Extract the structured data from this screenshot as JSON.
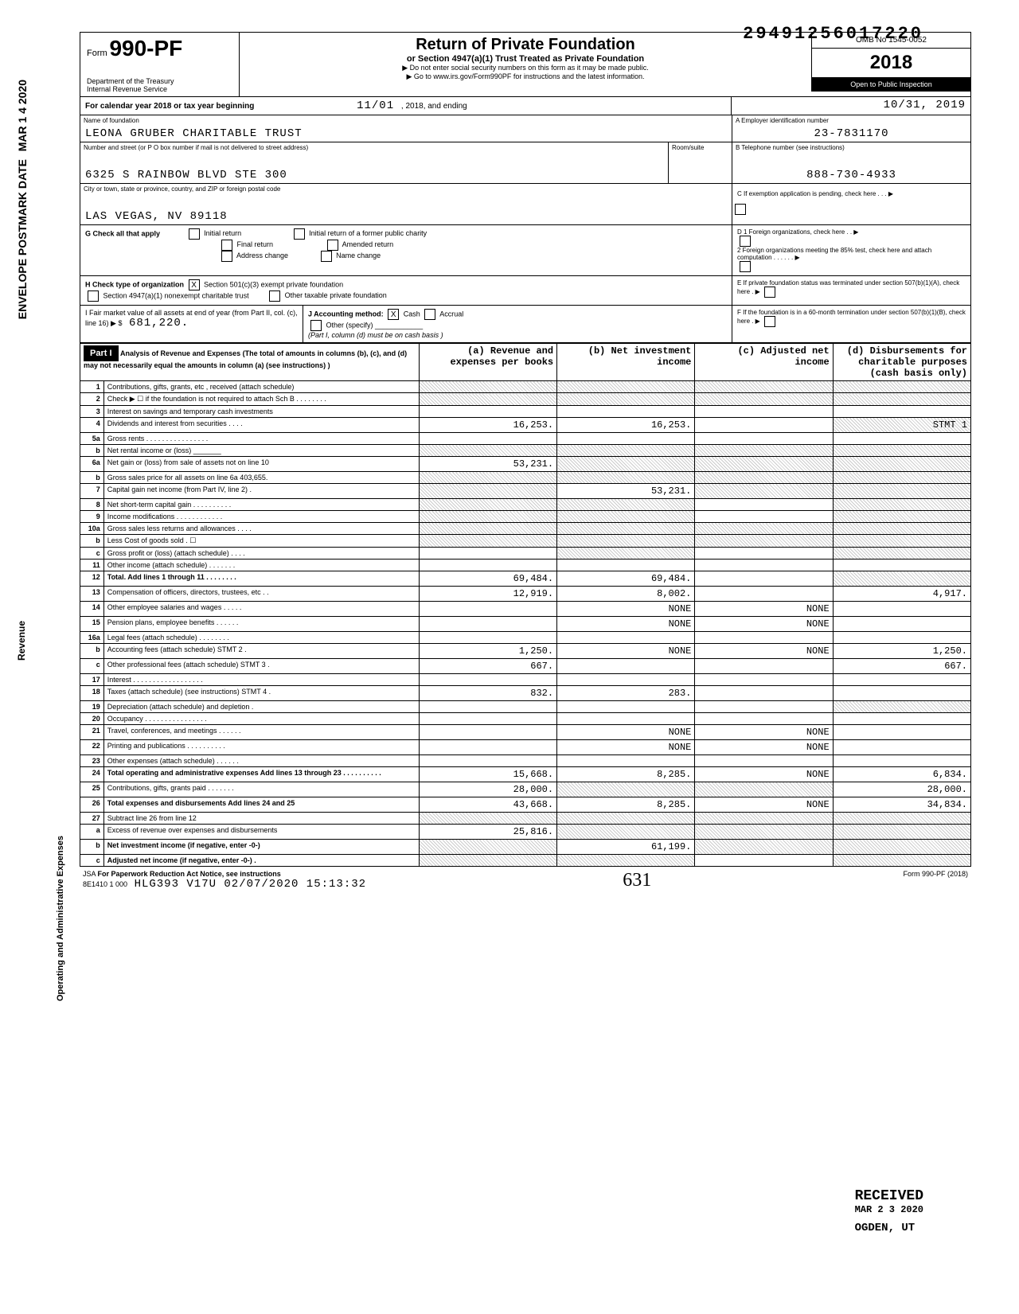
{
  "top_number": "29491256017220",
  "form": {
    "no_prefix": "Form",
    "no": "990-PF",
    "dept": "Department of the Treasury",
    "irs": "Internal Revenue Service",
    "title": "Return of Private Foundation",
    "subtitle": "or Section 4947(a)(1) Trust Treated as Private Foundation",
    "warn": "▶ Do not enter social security numbers on this form as it may be made public.",
    "goto": "▶ Go to www.irs.gov/Form990PF for instructions and the latest information.",
    "omb": "OMB No 1545-0052",
    "year": "2018",
    "open": "Open to Public Inspection"
  },
  "cal": {
    "label": "For calendar year 2018 or tax year beginning",
    "begin": "11/01",
    "mid": ", 2018, and ending",
    "end": "10/31, 2019"
  },
  "name": {
    "label": "Name of foundation",
    "value": "LEONA GRUBER CHARITABLE TRUST",
    "addr_label": "Number and street (or P O box number if mail is not delivered to street address)",
    "addr": "6325 S RAINBOW BLVD STE 300",
    "city_label": "City or town, state or province, country, and ZIP or foreign postal code",
    "city": "LAS VEGAS, NV 89118",
    "room_label": "Room/suite"
  },
  "ein": {
    "label": "A  Employer identification number",
    "value": "23-7831170",
    "phone_label": "B  Telephone number (see instructions)",
    "phone": "888-730-4933",
    "c_label": "C  If exemption application is pending, check here . . . ▶"
  },
  "g": {
    "label": "G  Check all that apply",
    "opt1": "Initial return",
    "opt2": "Final return",
    "opt3": "Address change",
    "opt4": "Initial return of a former public charity",
    "opt5": "Amended return",
    "opt6": "Name change"
  },
  "d": {
    "d1": "D  1  Foreign organizations, check here . . ▶",
    "d2": "2  Foreign organizations meeting the 85% test, check here and attach computation . . . . . . ▶"
  },
  "h": {
    "label": "H  Check type of organization",
    "opt1": "Section 501(c)(3) exempt private foundation",
    "opt1_checked": "X",
    "opt2": "Section 4947(a)(1) nonexempt charitable trust",
    "opt3": "Other taxable private foundation"
  },
  "e": {
    "label": "E  If private foundation status was terminated under section 507(b)(1)(A), check here . ▶"
  },
  "i": {
    "label": "I  Fair market value of all assets at end of year (from Part II, col. (c), line 16) ▶ $",
    "value": "681,220."
  },
  "j": {
    "label": "J  Accounting method:",
    "cash": "Cash",
    "cash_checked": "X",
    "accrual": "Accrual",
    "other": "Other (specify)",
    "note": "(Part I, column (d) must be on cash basis )"
  },
  "f": {
    "label": "F  If the foundation is in a 60-month termination under section 507(b)(1)(B), check here . ▶"
  },
  "part1": {
    "header": "Part I",
    "title": "Analysis of Revenue and Expenses (The total of amounts in columns (b), (c), and (d) may not necessarily equal the amounts in column (a) (see instructions) )",
    "col_a": "(a) Revenue and expenses per books",
    "col_b": "(b) Net investment income",
    "col_c": "(c) Adjusted net income",
    "col_d": "(d) Disbursements for charitable purposes (cash basis only)"
  },
  "rows": [
    {
      "n": "1",
      "d": "",
      "a": "",
      "b": "",
      "c": "",
      "sa": true,
      "sb": true,
      "sc": true,
      "sd": true
    },
    {
      "n": "2",
      "d": "",
      "a": "",
      "b": "",
      "c": "",
      "sa": true,
      "sb": true,
      "sc": true,
      "sd": true
    },
    {
      "n": "3",
      "d": "",
      "a": "",
      "b": "",
      "c": ""
    },
    {
      "n": "4",
      "d": "STMT 1",
      "a": "16,253.",
      "b": "16,253.",
      "c": "",
      "sd": true
    },
    {
      "n": "5a",
      "d": "",
      "a": "",
      "b": "",
      "c": ""
    },
    {
      "n": "b",
      "d": "",
      "a": "",
      "b": "",
      "c": "",
      "sa": true,
      "sb": true,
      "sc": true,
      "sd": true
    },
    {
      "n": "6a",
      "d": "",
      "a": "53,231.",
      "b": "",
      "c": "",
      "sb": true,
      "sc": true,
      "sd": true
    },
    {
      "n": "b",
      "d": "",
      "a": "",
      "b": "",
      "c": "",
      "sa": true,
      "sb": true,
      "sc": true,
      "sd": true
    },
    {
      "n": "7",
      "d": "",
      "a": "",
      "b": "53,231.",
      "c": "",
      "sa": true,
      "sc": true,
      "sd": true
    },
    {
      "n": "8",
      "d": "",
      "a": "",
      "b": "",
      "c": "",
      "sa": true,
      "sb": true,
      "sd": true
    },
    {
      "n": "9",
      "d": "",
      "a": "",
      "b": "",
      "c": "",
      "sa": true,
      "sb": true,
      "sd": true
    },
    {
      "n": "10a",
      "d": "",
      "a": "",
      "b": "",
      "c": "",
      "sa": true,
      "sb": true,
      "sc": true,
      "sd": true
    },
    {
      "n": "b",
      "d": "",
      "a": "",
      "b": "",
      "c": "",
      "sa": true,
      "sb": true,
      "sc": true,
      "sd": true
    },
    {
      "n": "c",
      "d": "",
      "a": "",
      "b": "",
      "c": "",
      "sb": true,
      "sd": true
    },
    {
      "n": "11",
      "d": "",
      "a": "",
      "b": "",
      "c": ""
    },
    {
      "n": "12",
      "d": "",
      "a": "69,484.",
      "b": "69,484.",
      "c": "",
      "sd": true,
      "bold": true
    },
    {
      "n": "13",
      "d": "4,917.",
      "a": "12,919.",
      "b": "8,002.",
      "c": ""
    },
    {
      "n": "14",
      "d": "",
      "a": "",
      "b": "NONE",
      "c": "NONE"
    },
    {
      "n": "15",
      "d": "",
      "a": "",
      "b": "NONE",
      "c": "NONE"
    },
    {
      "n": "16a",
      "d": "",
      "a": "",
      "b": "",
      "c": ""
    },
    {
      "n": "b",
      "d": "1,250.",
      "a": "1,250.",
      "b": "NONE",
      "c": "NONE"
    },
    {
      "n": "c",
      "d": "667.",
      "a": "667.",
      "b": "",
      "c": ""
    },
    {
      "n": "17",
      "d": "",
      "a": "",
      "b": "",
      "c": ""
    },
    {
      "n": "18",
      "d": "",
      "a": "832.",
      "b": "283.",
      "c": ""
    },
    {
      "n": "19",
      "d": "",
      "a": "",
      "b": "",
      "c": "",
      "sd": true
    },
    {
      "n": "20",
      "d": "",
      "a": "",
      "b": "",
      "c": ""
    },
    {
      "n": "21",
      "d": "",
      "a": "",
      "b": "NONE",
      "c": "NONE"
    },
    {
      "n": "22",
      "d": "",
      "a": "",
      "b": "NONE",
      "c": "NONE"
    },
    {
      "n": "23",
      "d": "",
      "a": "",
      "b": "",
      "c": ""
    },
    {
      "n": "24",
      "d": "6,834.",
      "a": "15,668.",
      "b": "8,285.",
      "c": "NONE",
      "bold": true
    },
    {
      "n": "25",
      "d": "28,000.",
      "a": "28,000.",
      "b": "",
      "c": "",
      "sb": true,
      "sc": true
    },
    {
      "n": "26",
      "d": "34,834.",
      "a": "43,668.",
      "b": "8,285.",
      "c": "NONE",
      "bold": true
    },
    {
      "n": "27",
      "d": "",
      "a": "",
      "b": "",
      "c": "",
      "sa": true,
      "sb": true,
      "sc": true,
      "sd": true
    },
    {
      "n": "a",
      "d": "",
      "a": "25,816.",
      "b": "",
      "c": "",
      "sb": true,
      "sc": true,
      "sd": true
    },
    {
      "n": "b",
      "d": "",
      "a": "",
      "b": "61,199.",
      "c": "",
      "sa": true,
      "sc": true,
      "sd": true,
      "bold": true
    },
    {
      "n": "c",
      "d": "",
      "a": "",
      "b": "",
      "c": "",
      "sa": true,
      "sb": true,
      "sd": true,
      "bold": true
    }
  ],
  "footer": {
    "jsa": "JSA",
    "paperwork": "For Paperwork Reduction Act Notice, see instructions",
    "code": "8E1410 1 000",
    "stamp": "HLG393 V17U 02/07/2020 15:13:32",
    "form_ref": "Form 990-PF (2018)",
    "handwritten": "631"
  },
  "received": {
    "text": "RECEIVED",
    "date": "MAR 2 3 2020",
    "loc": "OGDEN, UT"
  },
  "side": {
    "mar": "MAR 1 4 2020",
    "env": "ENVELOPE POSTMARK DATE",
    "rev": "Revenue",
    "exp": "Operating and Administrative Expenses"
  }
}
